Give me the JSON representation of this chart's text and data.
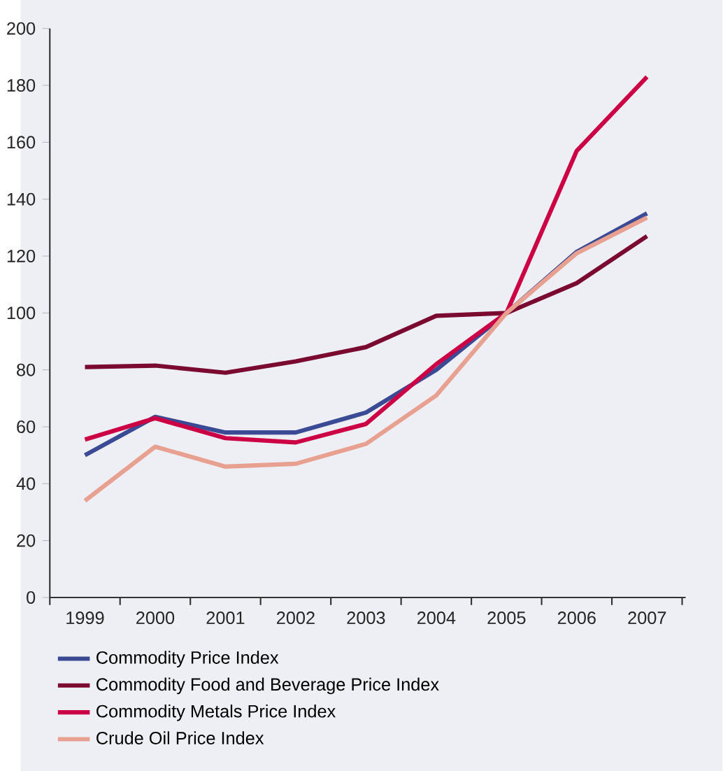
{
  "chart_data": {
    "type": "line",
    "categories": [
      "1999",
      "2000",
      "2001",
      "2002",
      "2003",
      "2004",
      "2005",
      "2006",
      "2007"
    ],
    "series": [
      {
        "name": "Commodity Price Index",
        "color": "#3b4a94",
        "values": [
          50,
          63.5,
          58,
          58,
          65,
          80,
          100,
          121.5,
          135
        ]
      },
      {
        "name": "Commodity Food and Beverage Price Index",
        "color": "#7a0a30",
        "values": [
          81,
          81.5,
          79,
          83,
          88,
          99,
          100,
          110.5,
          127
        ]
      },
      {
        "name": "Commodity Metals Price Index",
        "color": "#cc0044",
        "values": [
          55.5,
          63,
          56,
          54.5,
          61,
          82,
          100,
          157,
          183
        ]
      },
      {
        "name": "Crude Oil Price Index",
        "color": "#e8a090",
        "values": [
          34,
          53,
          46,
          47,
          54,
          71,
          100,
          121,
          133.5
        ]
      }
    ],
    "ylim": [
      0,
      200
    ],
    "yticks": [
      0,
      20,
      40,
      60,
      80,
      100,
      120,
      140,
      160,
      180,
      200
    ],
    "grid": false,
    "legend": "bottom",
    "marker": "none",
    "line_style": "solid"
  }
}
